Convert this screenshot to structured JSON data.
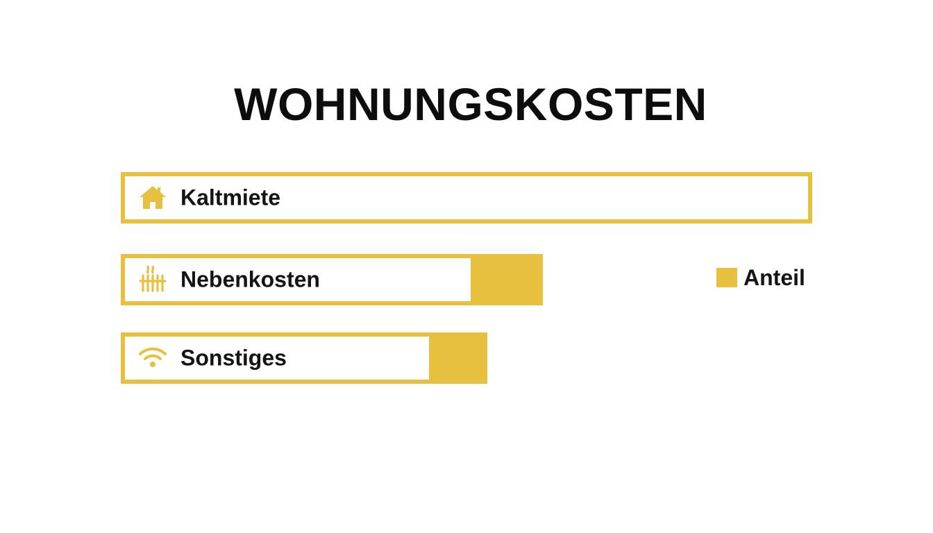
{
  "chart_data": {
    "type": "bar",
    "orientation": "horizontal",
    "title": "WOHNUNGSKOSTEN",
    "categories": [
      "Kaltmiete",
      "Nebenkosten",
      "Sonstiges"
    ],
    "icons": [
      "house-icon",
      "radiator-icon",
      "wifi-icon"
    ],
    "series": [
      {
        "name": "Anteil",
        "values": [
          100,
          61,
          53
        ],
        "filled": [
          0,
          10,
          8
        ]
      }
    ],
    "legend": {
      "position": "right",
      "label": "Anteil"
    },
    "grid": false,
    "colors": {
      "accent": "#E8C040"
    }
  }
}
